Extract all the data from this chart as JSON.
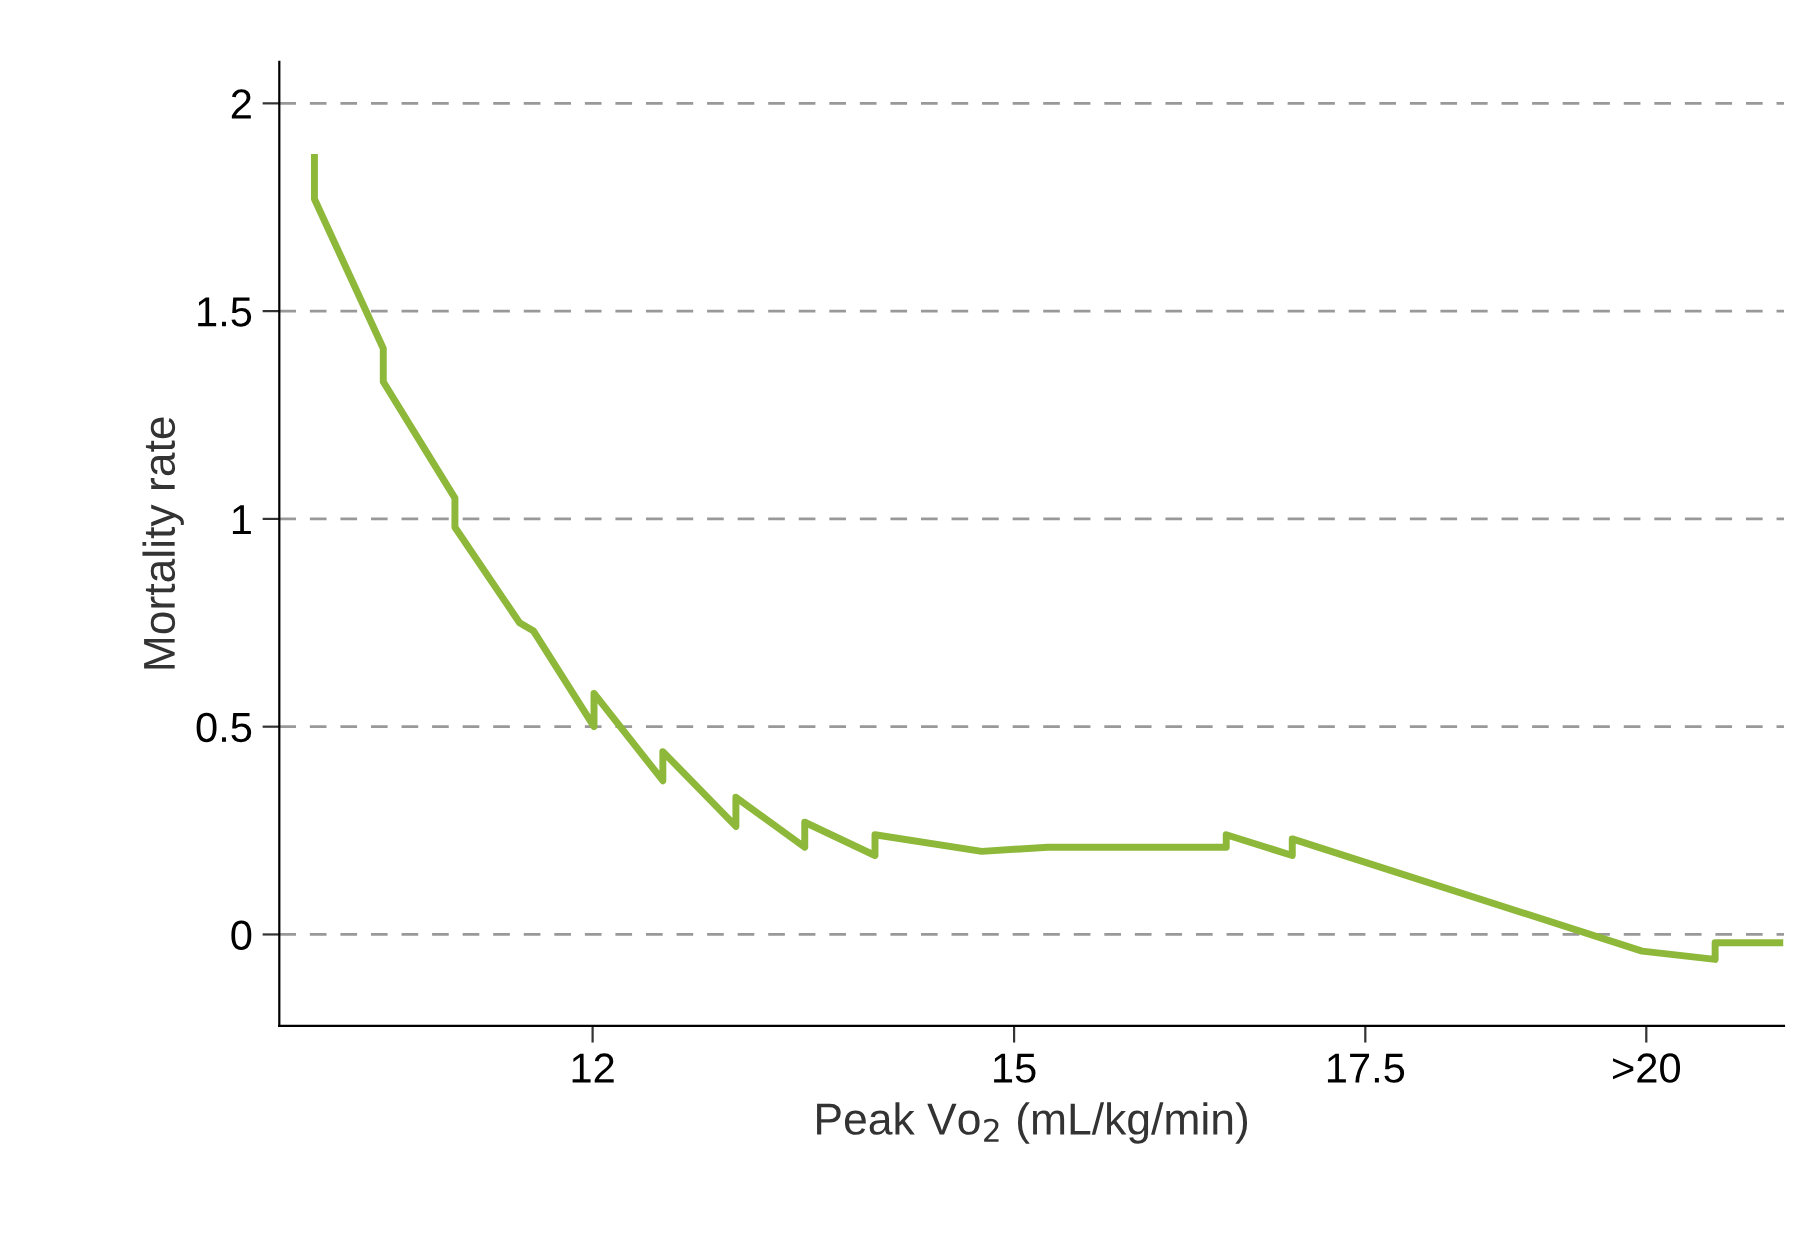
{
  "chart_data": {
    "type": "line",
    "xlabel": "Peak Vo$_{2}$ (mL/kg/min)",
    "ylabel": "Mortality rate",
    "xlim": [
      9.77,
      20.48
    ],
    "xticks": [
      12,
      15,
      17.5,
      {
        "value": 19.5,
        "label": ">20"
      }
    ],
    "ylim": [
      -0.22,
      2.1
    ],
    "yticks": [
      0,
      0.5,
      1,
      1.5,
      2
    ],
    "grid": "y",
    "marker": "none",
    "line_style": "solid",
    "series": [
      {
        "color": "#8db83a",
        "x": [
          10.02,
          10.02,
          10.51,
          10.51,
          11.02,
          11.02,
          11.48,
          11.58,
          12.01,
          12.01,
          12.5,
          12.5,
          13.02,
          13.02,
          13.51,
          13.51,
          14.01,
          14.01,
          14.77,
          15.24,
          16.51,
          16.51,
          16.98,
          16.98,
          19.47,
          19.99,
          19.99,
          20.45
        ],
        "values": [
          1.87,
          1.77,
          1.41,
          1.33,
          1.05,
          0.98,
          0.75,
          0.73,
          0.5,
          0.58,
          0.37,
          0.44,
          0.26,
          0.33,
          0.21,
          0.27,
          0.19,
          0.24,
          0.2,
          0.21,
          0.21,
          0.24,
          0.19,
          0.23,
          -0.04,
          -0.06,
          -0.02,
          -0.02
        ]
      }
    ]
  }
}
